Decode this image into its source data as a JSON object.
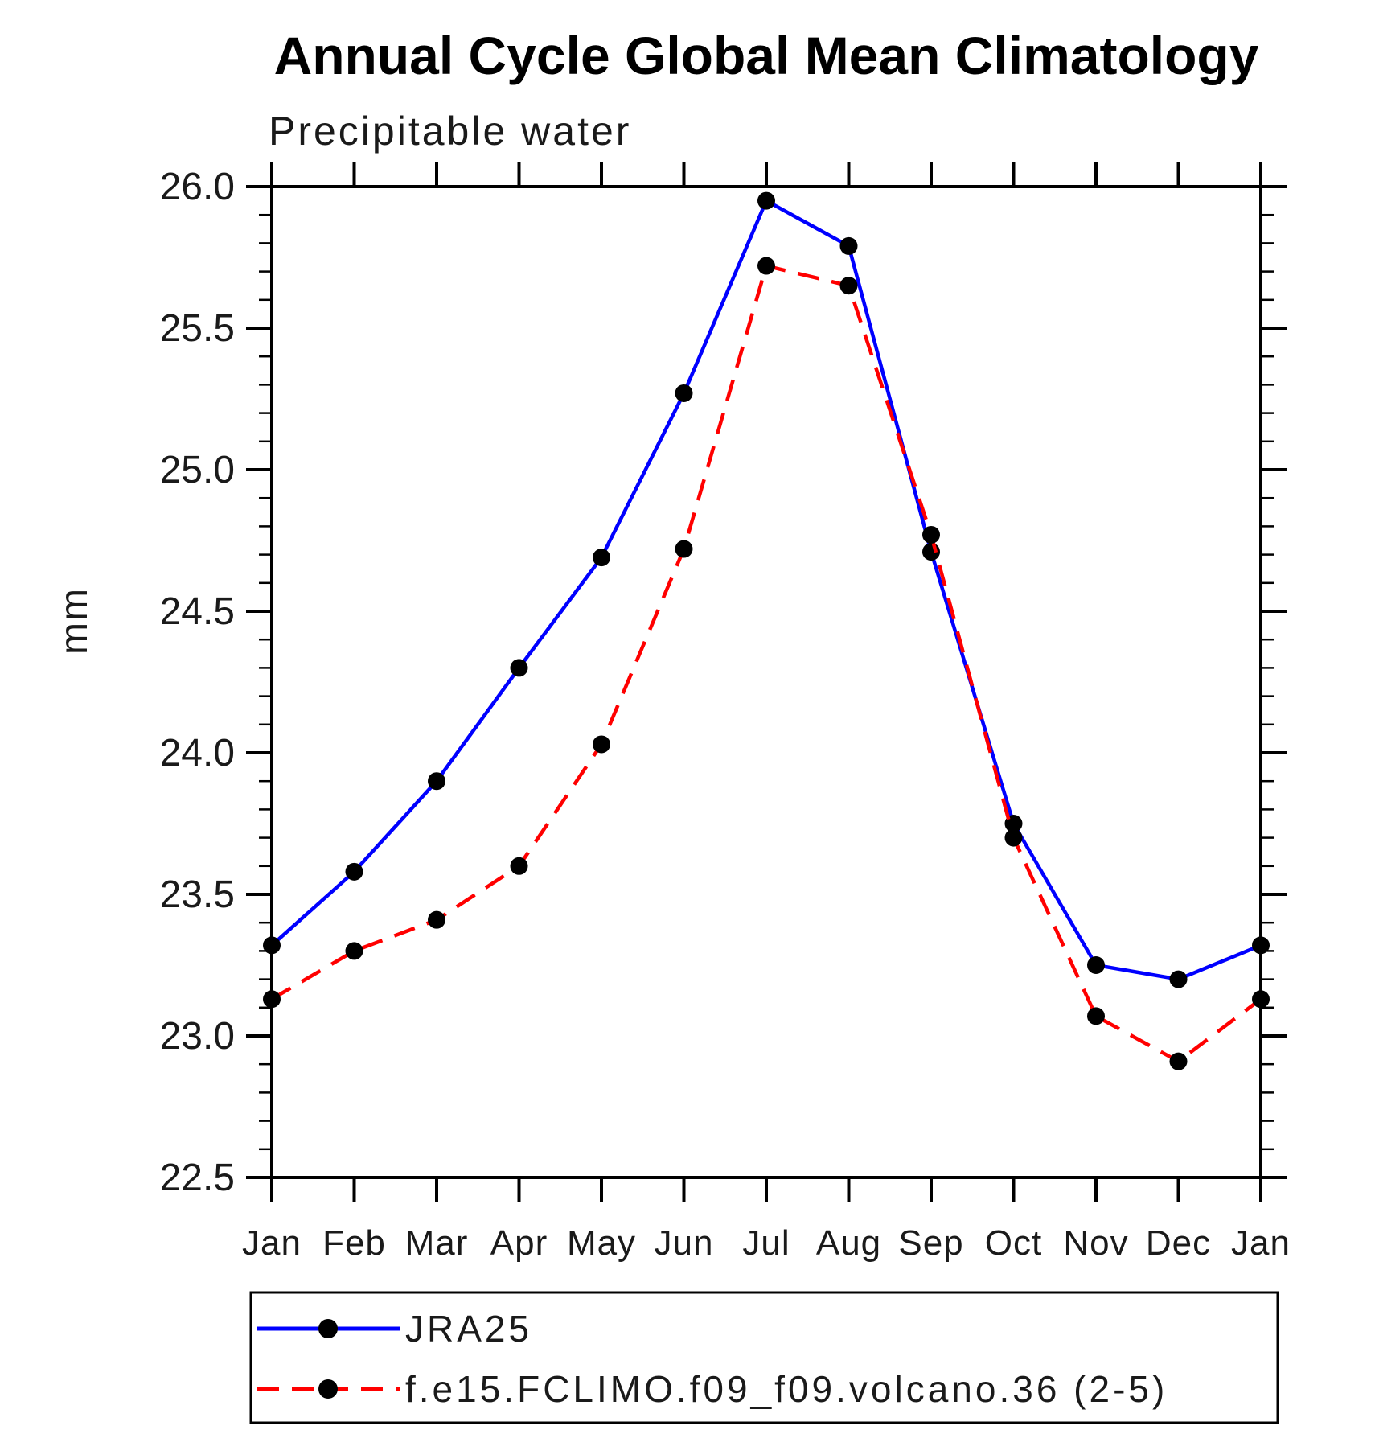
{
  "chart_data": {
    "type": "line",
    "title": "Annual Cycle Global Mean Climatology",
    "subtitle": "Precipitable water",
    "ylabel": "mm",
    "ylim": [
      22.5,
      26.0
    ],
    "ytick_step": 0.5,
    "yminor_step": 0.1,
    "grid": false,
    "legend_position": "bottom-left",
    "axis_color": "#000000",
    "categories": [
      "Jan",
      "Feb",
      "Mar",
      "Apr",
      "May",
      "Jun",
      "Jul",
      "Aug",
      "Sep",
      "Oct",
      "Nov",
      "Dec",
      "Jan"
    ],
    "series": [
      {
        "name": "JRA25",
        "color": "#0000ff",
        "style": "solid",
        "marker": "circle",
        "marker_color": "#000000",
        "values": [
          23.32,
          23.58,
          23.9,
          24.3,
          24.69,
          25.27,
          25.95,
          25.79,
          24.71,
          23.75,
          23.25,
          23.2,
          23.32
        ]
      },
      {
        "name": "f.e15.FCLIMO.f09_f09.volcano.36 (2-5)",
        "color": "#ff0000",
        "style": "dashed",
        "marker": "circle",
        "marker_color": "#000000",
        "values": [
          23.13,
          23.3,
          23.41,
          23.6,
          24.03,
          24.72,
          25.72,
          25.65,
          24.77,
          23.7,
          23.07,
          22.91,
          23.13
        ]
      }
    ]
  }
}
